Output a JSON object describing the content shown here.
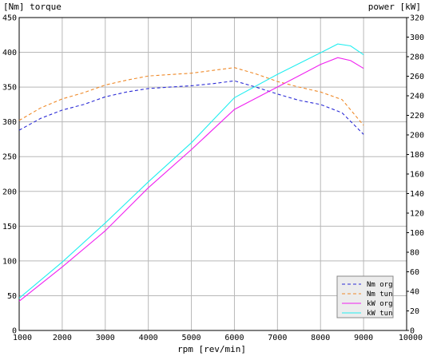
{
  "chart_data": {
    "type": "line",
    "left_axis_title": "[Nm] torque",
    "right_axis_title": "power [kW]",
    "xlabel": "rpm [rev/min]",
    "xlim": [
      1000,
      10000
    ],
    "ylim_left": [
      0,
      450
    ],
    "ylim_right": [
      0,
      320
    ],
    "x_ticks": [
      "1000",
      "2000",
      "3000",
      "4000",
      "5000",
      "6000",
      "7000",
      "8000",
      "9000",
      "10000"
    ],
    "left_ticks": [
      "0",
      "50",
      "100",
      "150",
      "200",
      "250",
      "300",
      "350",
      "400",
      "450"
    ],
    "right_ticks": [
      "0",
      "20",
      "40",
      "60",
      "80",
      "100",
      "120",
      "140",
      "160",
      "180",
      "200",
      "220",
      "240",
      "260",
      "280",
      "300",
      "320"
    ],
    "grid": true,
    "legend_position": "bottom-right",
    "series": [
      {
        "name": "Nm org",
        "axis": "left",
        "color": "#2b2bd6",
        "dash": "4,3",
        "x": [
          1000,
          1500,
          2000,
          2500,
          3000,
          3500,
          4000,
          4500,
          5000,
          5500,
          6000,
          6500,
          7000,
          7500,
          8000,
          8500,
          9000
        ],
        "y": [
          288,
          305,
          317,
          325,
          336,
          343,
          348,
          350,
          352,
          355,
          359,
          350,
          340,
          331,
          325,
          313,
          282
        ]
      },
      {
        "name": "Nm tun",
        "axis": "left",
        "color": "#ef8a2a",
        "dash": "4,3",
        "x": [
          1000,
          1500,
          2000,
          2500,
          3000,
          3500,
          4000,
          4500,
          5000,
          5500,
          6000,
          6500,
          7000,
          7500,
          8000,
          8500,
          9000
        ],
        "y": [
          302,
          320,
          333,
          342,
          353,
          360,
          366,
          368,
          370,
          374,
          378,
          369,
          358,
          350,
          343,
          332,
          295
        ]
      },
      {
        "name": "kW org",
        "axis": "right",
        "color": "#f020f0",
        "dash": "",
        "x": [
          1000,
          2000,
          3000,
          4000,
          5000,
          6000,
          7000,
          8000,
          8400,
          8700,
          9000
        ],
        "y": [
          30,
          65,
          102,
          146,
          185,
          226,
          249,
          272,
          279,
          276,
          268
        ]
      },
      {
        "name": "kW tun",
        "axis": "right",
        "color": "#22eef0",
        "dash": "",
        "x": [
          1000,
          2000,
          3000,
          4000,
          5000,
          6000,
          7000,
          8000,
          8400,
          8700,
          9000
        ],
        "y": [
          33,
          70,
          110,
          152,
          192,
          238,
          262,
          284,
          293,
          291,
          282
        ]
      }
    ]
  }
}
